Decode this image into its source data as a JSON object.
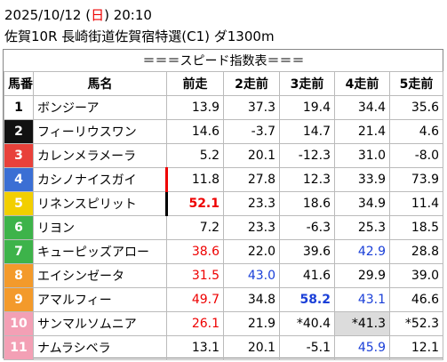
{
  "header": {
    "datetime": [
      "2025/10/12 (",
      "日",
      ") 20:10"
    ],
    "race": "佐賀10R 長崎街道佐賀宿特選(C1) ダ1300m"
  },
  "table": {
    "title": "＝＝＝スピード指数表＝＝＝",
    "columns": [
      "馬番",
      "馬名",
      "前走",
      "2走前",
      "3走前",
      "4走前",
      "5走前"
    ],
    "rows": [
      [
        "1",
        "ボンジーア",
        "13.9",
        "37.3",
        "19.4",
        "34.4",
        "35.6"
      ],
      [
        "2",
        "フィーリウスワン",
        "14.6",
        "-3.7",
        "14.7",
        "21.4",
        "4.6"
      ],
      [
        "3",
        "カレンメラメーラ",
        "5.2",
        "20.1",
        "-12.3",
        "31.0",
        "-8.0"
      ],
      [
        "4",
        "カシノナイスガイ",
        "11.8",
        "27.8",
        "12.3",
        "33.9",
        "73.9"
      ],
      [
        "5",
        "リネンスピリット",
        "52.1",
        "23.3",
        "18.6",
        "34.9",
        "11.4"
      ],
      [
        "6",
        "リヨン",
        "7.2",
        "23.3",
        "-6.3",
        "25.3",
        "18.5"
      ],
      [
        "7",
        "キューピッズアロー",
        "38.6",
        "22.0",
        "39.6",
        "42.9",
        "28.8"
      ],
      [
        "8",
        "エイシンゼータ",
        "31.5",
        "43.0",
        "41.6",
        "29.9",
        "39.0"
      ],
      [
        "9",
        "アマルフィー",
        "49.7",
        "34.8",
        "58.2",
        "43.1",
        "46.6"
      ],
      [
        "10",
        "サンマルソムニア",
        "26.1",
        "21.9",
        "*40.4",
        "*41.3",
        "*52.3"
      ],
      [
        "11",
        "ナムラシベラ",
        "13.1",
        "20.1",
        "-5.1",
        "45.9",
        "12.1"
      ]
    ]
  }
}
